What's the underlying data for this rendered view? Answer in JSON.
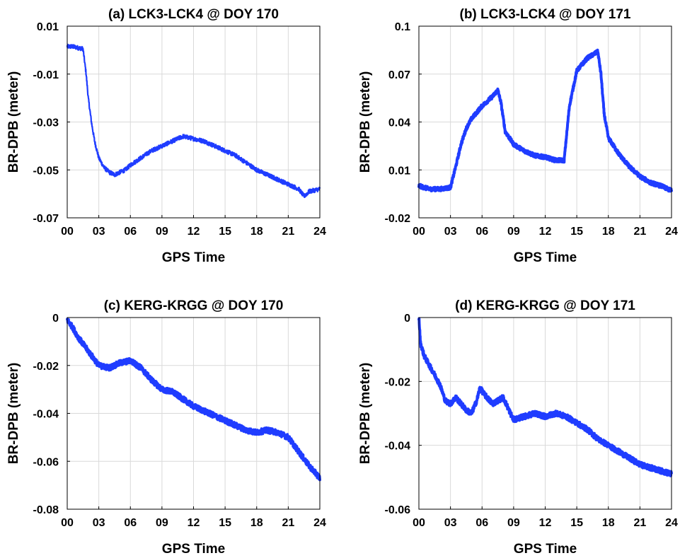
{
  "figure_colors": {
    "series": "#1f3cff",
    "grid": "#d9d9d9",
    "axes": "#000000"
  },
  "chart_data": [
    {
      "type": "line",
      "title": "(a) LCK3-LCK4 @ DOY 170",
      "xlabel": "GPS Time",
      "ylabel": "BR-DPB (meter)",
      "xlim": [
        0,
        24
      ],
      "ylim": [
        -0.07,
        0.01
      ],
      "xticks": [
        "00",
        "03",
        "06",
        "09",
        "12",
        "15",
        "18",
        "21",
        "24"
      ],
      "yticks": [
        "0.01",
        "-0.01",
        "-0.03",
        "-0.05",
        "-0.07"
      ],
      "grid": true,
      "series": [
        {
          "color": "#1f3cff",
          "noise": 0.0009,
          "x": [
            0,
            0.5,
            1.0,
            1.5,
            1.8,
            2.0,
            2.3,
            2.6,
            3.0,
            3.5,
            4.0,
            4.5,
            5.0,
            5.5,
            6.0,
            7.0,
            8.0,
            9.0,
            9.5,
            10.0,
            10.5,
            11.0,
            12.0,
            13.0,
            14.0,
            15.0,
            16.0,
            17.0,
            18.0,
            19.0,
            20.0,
            21.0,
            22.0,
            22.5,
            23.0,
            24.0
          ],
          "y": [
            0.0015,
            0.0015,
            0.001,
            0.0005,
            -0.01,
            -0.02,
            -0.03,
            -0.038,
            -0.045,
            -0.049,
            -0.051,
            -0.052,
            -0.051,
            -0.05,
            -0.048,
            -0.045,
            -0.042,
            -0.04,
            -0.039,
            -0.038,
            -0.037,
            -0.036,
            -0.037,
            -0.038,
            -0.04,
            -0.042,
            -0.044,
            -0.047,
            -0.05,
            -0.052,
            -0.054,
            -0.056,
            -0.058,
            -0.061,
            -0.059,
            -0.058
          ]
        }
      ]
    },
    {
      "type": "line",
      "title": "(b) LCK3-LCK4 @ DOY 171",
      "xlabel": "GPS Time",
      "ylabel": "BR-DPB (meter)",
      "xlim": [
        0,
        24
      ],
      "ylim": [
        -0.02,
        0.1
      ],
      "xticks": [
        "00",
        "03",
        "06",
        "09",
        "12",
        "15",
        "18",
        "21",
        "24"
      ],
      "yticks": [
        "0.1",
        "0.07",
        "0.04",
        "0.01",
        "-0.02"
      ],
      "grid": true,
      "series": [
        {
          "color": "#1f3cff",
          "noise": 0.0012,
          "x": [
            0,
            1.0,
            2.0,
            3.0,
            3.5,
            4.0,
            4.5,
            5.0,
            6.0,
            7.0,
            7.5,
            7.8,
            8.2,
            9.0,
            10.0,
            11.0,
            12.0,
            13.0,
            13.8,
            14.3,
            15.0,
            16.0,
            17.0,
            17.3,
            17.6,
            18.0,
            19.0,
            20.0,
            21.0,
            22.0,
            23.0,
            24.0
          ],
          "y": [
            0.0,
            -0.002,
            -0.002,
            -0.001,
            0.012,
            0.026,
            0.036,
            0.042,
            0.05,
            0.056,
            0.06,
            0.052,
            0.034,
            0.026,
            0.022,
            0.019,
            0.018,
            0.016,
            0.016,
            0.05,
            0.072,
            0.08,
            0.084,
            0.07,
            0.045,
            0.03,
            0.02,
            0.012,
            0.006,
            0.002,
            0.0,
            -0.003
          ]
        }
      ]
    },
    {
      "type": "line",
      "title": "(c) KERG-KRGG @ DOY 170",
      "xlabel": "GPS Time",
      "ylabel": "BR-DPB (meter)",
      "xlim": [
        0,
        24
      ],
      "ylim": [
        -0.08,
        0
      ],
      "xticks": [
        "00",
        "03",
        "06",
        "09",
        "12",
        "15",
        "18",
        "21",
        "24"
      ],
      "yticks": [
        "0",
        "-0.02",
        "-0.04",
        "-0.06",
        "-0.08"
      ],
      "grid": true,
      "series": [
        {
          "color": "#1f3cff",
          "noise": 0.0011,
          "x": [
            0,
            0.5,
            1.0,
            2.0,
            3.0,
            4.0,
            5.0,
            6.0,
            7.0,
            8.0,
            9.0,
            10.0,
            11.0,
            12.0,
            13.0,
            14.0,
            15.0,
            16.0,
            17.0,
            18.0,
            19.0,
            20.0,
            21.0,
            22.0,
            23.0,
            24.0
          ],
          "y": [
            -0.001,
            -0.004,
            -0.008,
            -0.014,
            -0.02,
            -0.021,
            -0.019,
            -0.018,
            -0.021,
            -0.026,
            -0.03,
            -0.031,
            -0.034,
            -0.037,
            -0.039,
            -0.041,
            -0.043,
            -0.045,
            -0.047,
            -0.048,
            -0.047,
            -0.048,
            -0.05,
            -0.056,
            -0.062,
            -0.067
          ]
        }
      ]
    },
    {
      "type": "line",
      "title": "(d) KERG-KRGG @ DOY 171",
      "xlabel": "GPS Time",
      "ylabel": "BR-DPB (meter)",
      "xlim": [
        0,
        24
      ],
      "ylim": [
        -0.06,
        0
      ],
      "xticks": [
        "00",
        "03",
        "06",
        "09",
        "12",
        "15",
        "18",
        "21",
        "24"
      ],
      "yticks": [
        "0",
        "-0.02",
        "-0.04",
        "-0.06"
      ],
      "grid": true,
      "series": [
        {
          "color": "#1f3cff",
          "noise": 0.0008,
          "x": [
            0,
            0.15,
            0.5,
            1.0,
            1.5,
            2.0,
            2.5,
            3.0,
            3.5,
            4.0,
            4.5,
            5.0,
            5.5,
            5.8,
            6.2,
            7.0,
            8.0,
            8.7,
            9.0,
            10.0,
            11.0,
            12.0,
            13.0,
            14.0,
            15.0,
            16.0,
            17.0,
            18.0,
            19.0,
            20.0,
            21.0,
            22.0,
            23.0,
            24.0
          ],
          "y": [
            0.0,
            -0.008,
            -0.012,
            -0.015,
            -0.018,
            -0.021,
            -0.026,
            -0.027,
            -0.025,
            -0.027,
            -0.029,
            -0.03,
            -0.026,
            -0.022,
            -0.024,
            -0.027,
            -0.025,
            -0.03,
            -0.032,
            -0.031,
            -0.03,
            -0.031,
            -0.03,
            -0.031,
            -0.033,
            -0.035,
            -0.038,
            -0.04,
            -0.042,
            -0.044,
            -0.046,
            -0.047,
            -0.048,
            -0.049
          ]
        }
      ]
    }
  ]
}
